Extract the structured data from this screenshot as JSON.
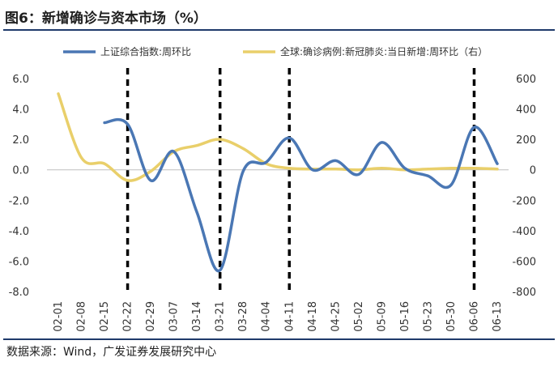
{
  "header": {
    "title": "图6：新增确诊与资本市场（%）"
  },
  "footer": {
    "source": "数据来源：Wind，广发证券发展研究中心"
  },
  "colors": {
    "index": "#4a77b4",
    "cases": "#e9cf6a",
    "vline": "#000000",
    "rule": "#1f3a6b"
  },
  "chart_data": {
    "type": "line",
    "title": "",
    "categories": [
      "02-01",
      "02-08",
      "02-15",
      "02-22",
      "02-29",
      "03-07",
      "03-14",
      "03-21",
      "03-28",
      "04-04",
      "04-11",
      "04-18",
      "04-25",
      "05-02",
      "05-09",
      "05-16",
      "05-23",
      "05-30",
      "06-06",
      "06-13"
    ],
    "ylim_left": [
      -8.0,
      6.0
    ],
    "yticks_left": [
      "6.0",
      "4.0",
      "2.0",
      "0.0",
      "-2.0",
      "-4.0",
      "-6.0",
      "-8.0"
    ],
    "ylim_right": [
      -800,
      600
    ],
    "yticks_right": [
      "600",
      "400",
      "200",
      "0",
      "-200",
      "-400",
      "-600",
      "-800"
    ],
    "series": [
      {
        "name": "上证综合指数:周环比",
        "axis": "left",
        "values": [
          null,
          null,
          3.1,
          3.0,
          -0.7,
          1.2,
          -2.8,
          -6.6,
          -0.1,
          0.5,
          2.1,
          0.0,
          0.6,
          -0.3,
          1.8,
          0.1,
          -0.4,
          -1.0,
          2.8,
          0.4
        ]
      },
      {
        "name": "全球:确诊病例:新冠肺炎:当日新增:周环比（右）",
        "axis": "right",
        "values": [
          500,
          80,
          40,
          -70,
          -10,
          120,
          160,
          200,
          140,
          40,
          10,
          5,
          5,
          0,
          10,
          0,
          5,
          10,
          10,
          5
        ]
      }
    ],
    "vertical_markers": [
      "02-22",
      "03-21",
      "04-11",
      "06-06"
    ],
    "legend_position": "top"
  }
}
